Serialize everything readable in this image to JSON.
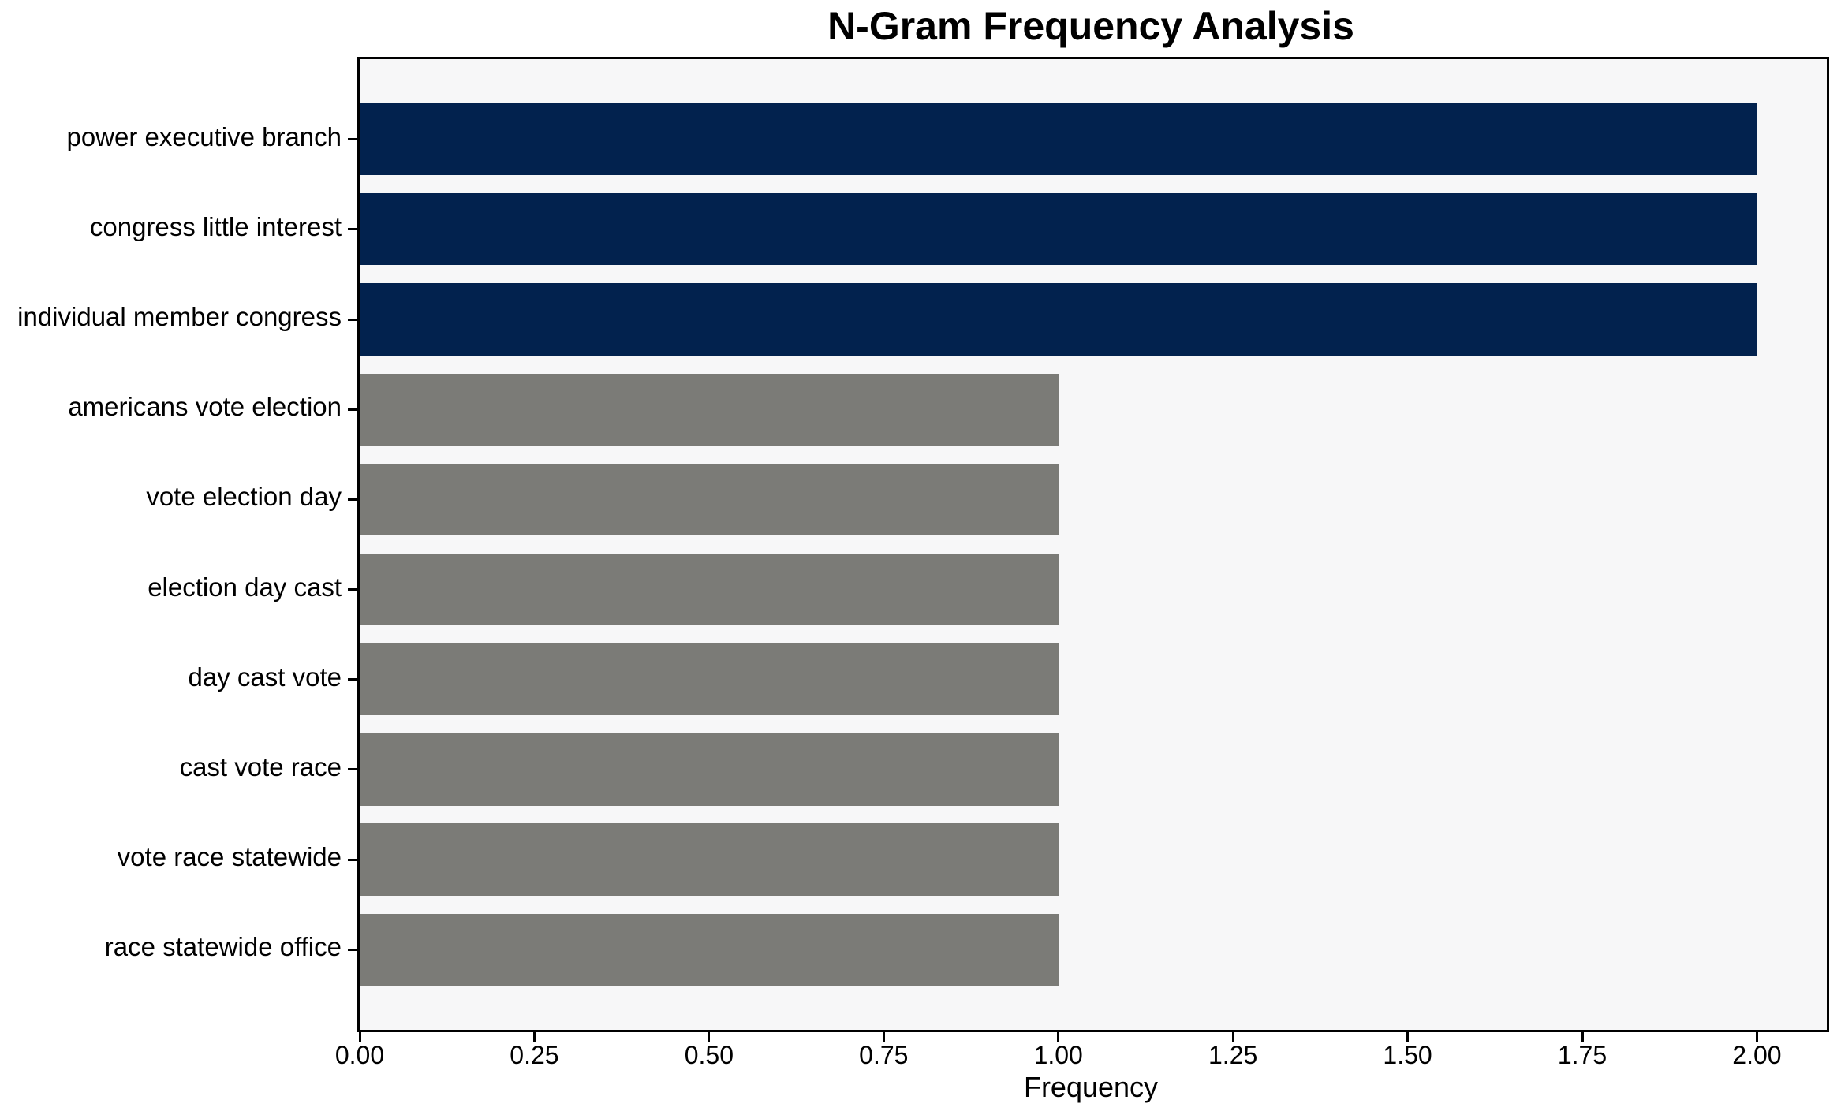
{
  "chart_data": {
    "type": "bar",
    "orientation": "horizontal",
    "title": "N-Gram Frequency Analysis",
    "xlabel": "Frequency",
    "ylabel": "",
    "categories": [
      "power executive branch",
      "congress little interest",
      "individual member congress",
      "americans vote election",
      "vote election day",
      "election day cast",
      "day cast vote",
      "cast vote race",
      "vote race statewide",
      "race statewide office"
    ],
    "values": [
      2,
      2,
      2,
      1,
      1,
      1,
      1,
      1,
      1,
      1
    ],
    "bar_colors": [
      "#02224e",
      "#02224e",
      "#02224e",
      "#7b7b77",
      "#7b7b77",
      "#7b7b77",
      "#7b7b77",
      "#7b7b77",
      "#7b7b77",
      "#7b7b77"
    ],
    "colors": {
      "highlight": "#02224e",
      "default": "#7b7b77",
      "plot_background": "#f7f7f8",
      "figure_background": "#ffffff",
      "spine": "#000000",
      "text": "#000000"
    },
    "xlim": [
      0,
      2.1
    ],
    "x_ticks": {
      "values": [
        0,
        0.25,
        0.5,
        0.75,
        1.0,
        1.25,
        1.5,
        1.75,
        2.0
      ],
      "labels": [
        "0.00",
        "0.25",
        "0.50",
        "0.75",
        "1.00",
        "1.25",
        "1.50",
        "1.75",
        "2.00"
      ]
    },
    "bar_height_frac": 0.8,
    "y_edge_margin_units": 0.89,
    "grid": false,
    "legend": null
  }
}
